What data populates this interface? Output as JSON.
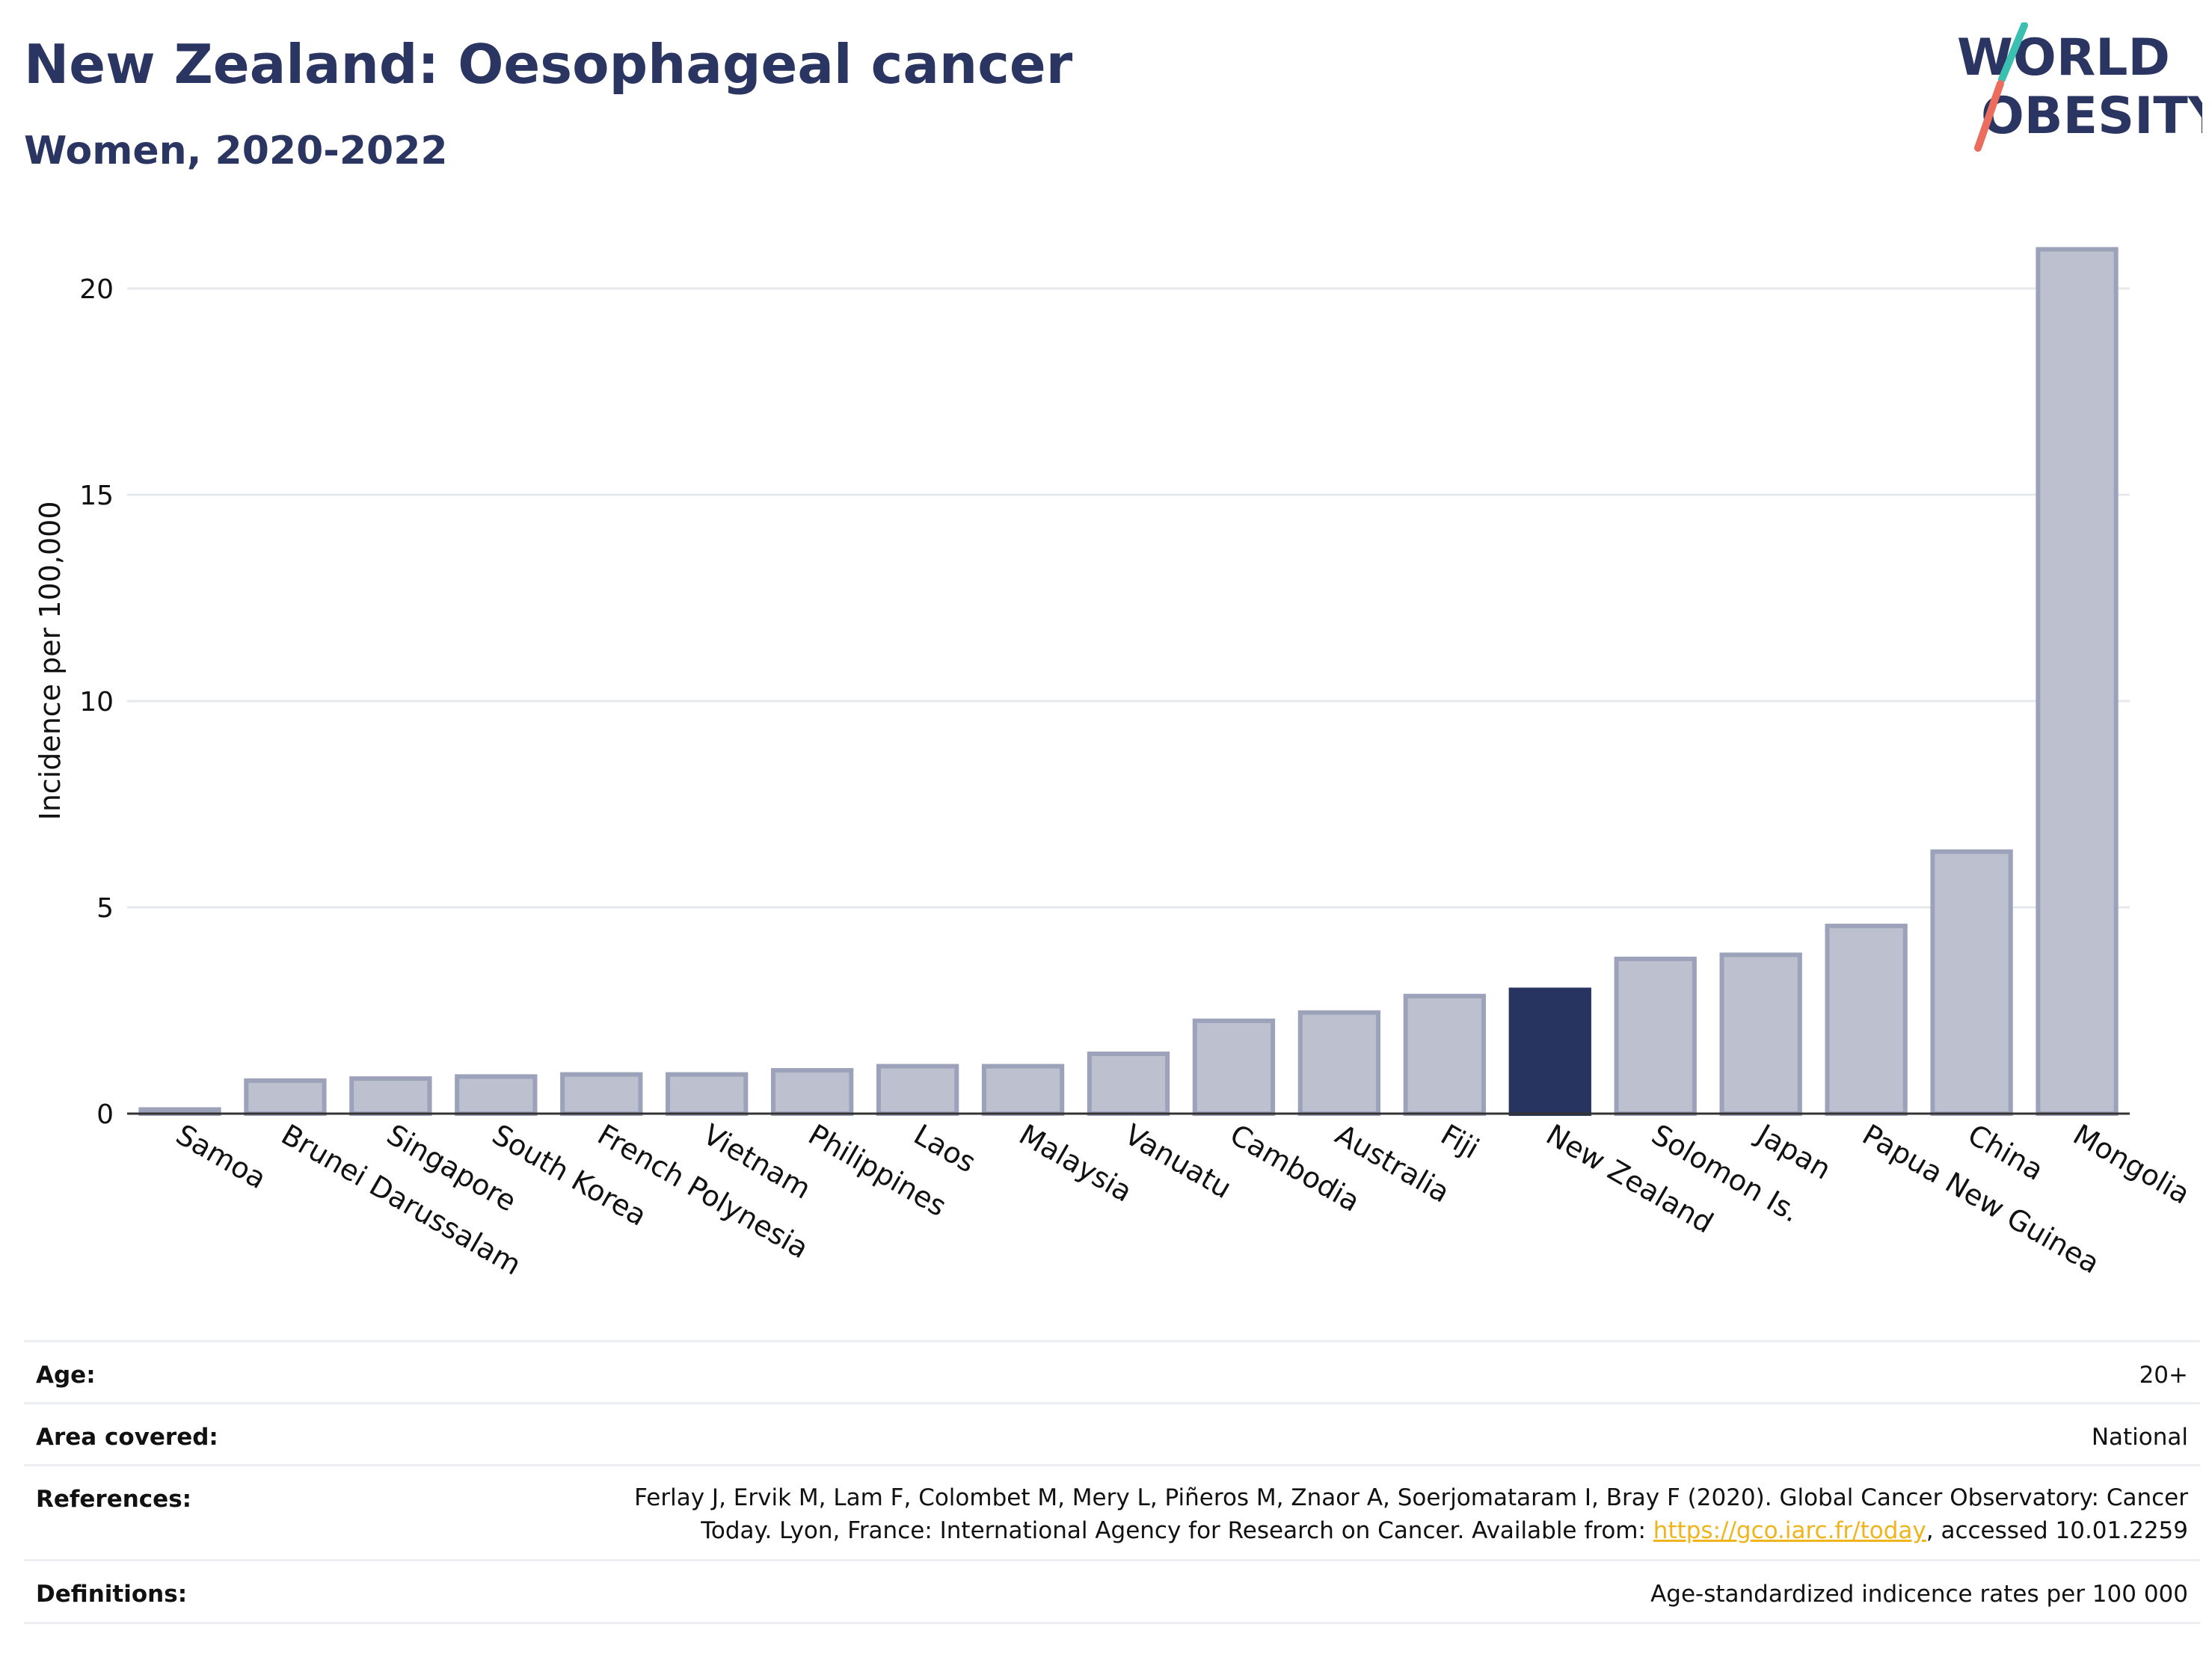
{
  "header": {
    "title": "New Zealand: Oesophageal cancer",
    "subtitle": "Women, 2020-2022"
  },
  "logo": {
    "line1": "WORLD",
    "line2": "OBESITY"
  },
  "colors": {
    "bar": "#bcc0cf",
    "bar_border": "#9ca2b9",
    "highlight": "#283460",
    "grid": "#e6e8ee",
    "title": "#2b3561",
    "logo_teal": "#3bbfb1",
    "logo_red": "#ea6d5e",
    "link": "#f0b41c"
  },
  "chart_data": {
    "type": "bar",
    "categories": [
      "Samoa",
      "Brunei Darussalam",
      "Singapore",
      "South Korea",
      "French Polynesia",
      "Vietnam",
      "Philippines",
      "Laos",
      "Malaysia",
      "Vanuatu",
      "Cambodia",
      "Australia",
      "Fiji",
      "New Zealand",
      "Solomon Is.",
      "Japan",
      "Papua New Guinea",
      "China",
      "Mongolia"
    ],
    "values": [
      0.1,
      0.8,
      0.85,
      0.9,
      0.95,
      0.95,
      1.05,
      1.15,
      1.15,
      1.45,
      2.25,
      2.45,
      2.85,
      3.0,
      3.75,
      3.85,
      4.55,
      6.35,
      20.95
    ],
    "highlight": "New Zealand",
    "ylabel": "Incidence per 100,000",
    "xlabel": "",
    "ylim": [
      0,
      21.5
    ],
    "yticks": [
      0,
      5,
      10,
      15,
      20
    ],
    "grid": true
  },
  "meta": {
    "age_label": "Age:",
    "age_value": "20+",
    "area_label": "Area covered:",
    "area_value": "National",
    "references_label": "References:",
    "references_line1": "Ferlay J, Ervik M, Lam F, Colombet M, Mery L, Piñeros M, Znaor A, Soerjomataram I, Bray F (2020). Global Cancer Observatory: Cancer",
    "references_line2_pre": "Today. Lyon, France: International Agency for Research on Cancer. Available from: ",
    "references_link": "https://gco.iarc.fr/today",
    "references_line2_post": ", accessed 10.01.2259",
    "definitions_label": "Definitions:",
    "definitions_value": "Age-standardized indicence rates per 100 000"
  }
}
